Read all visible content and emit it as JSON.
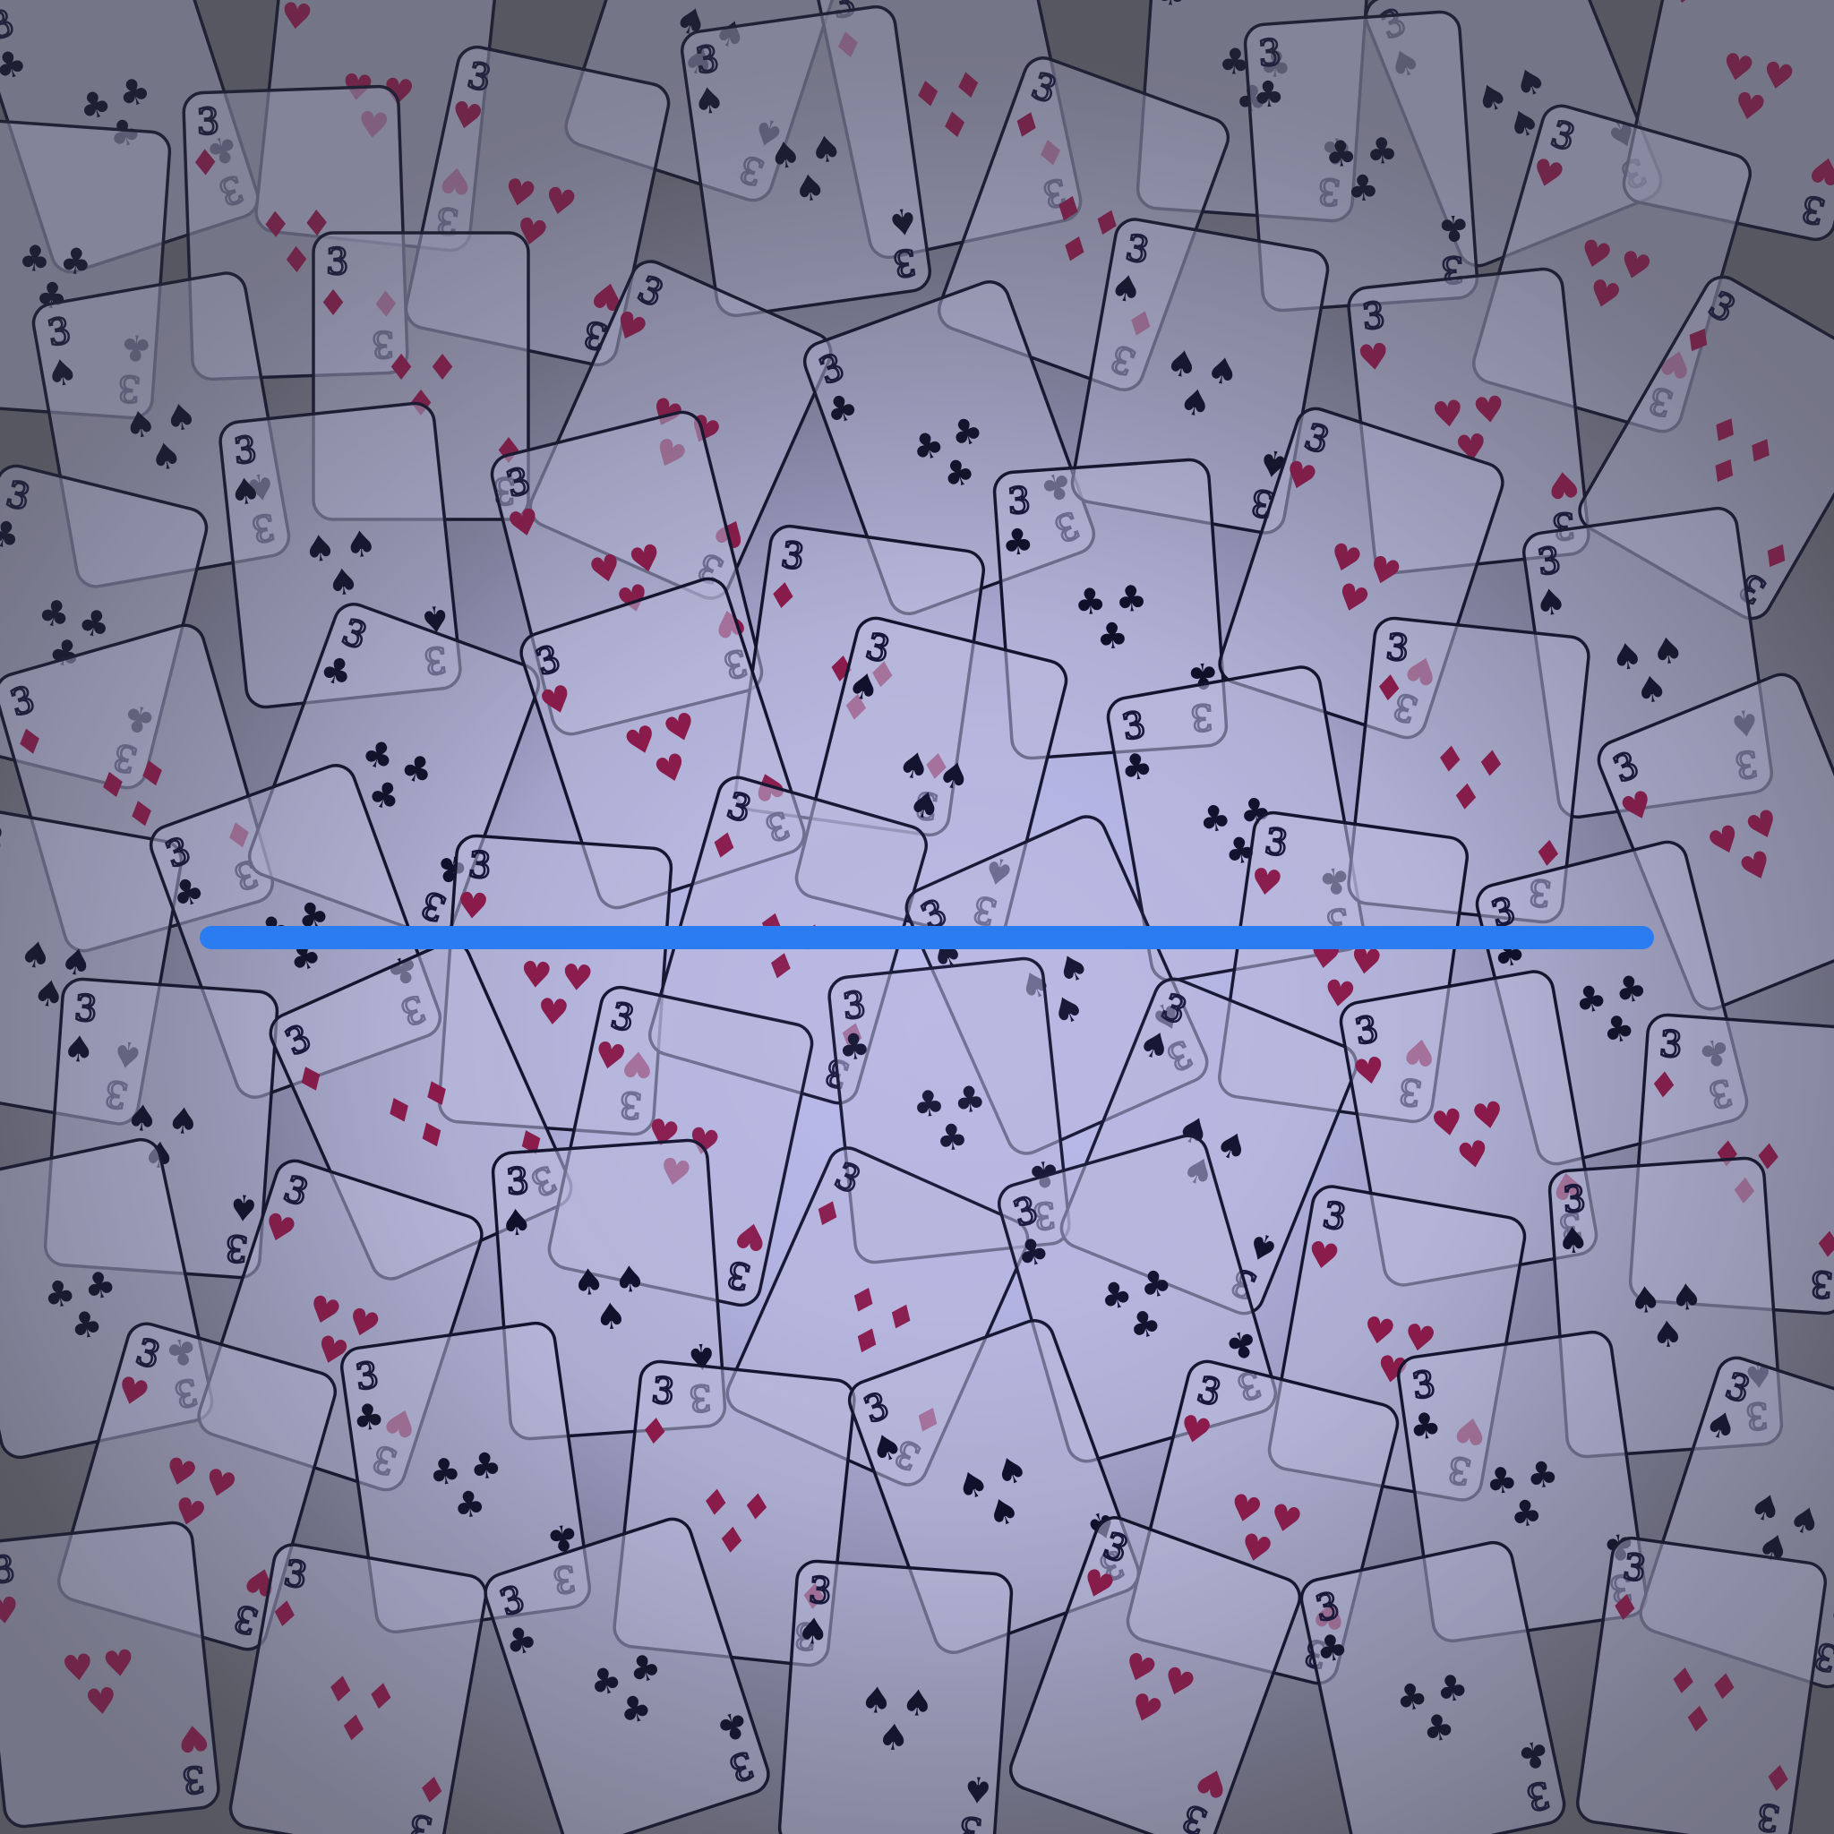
{
  "scene": {
    "card_rank": "3",
    "suits": {
      "hearts": "♥",
      "diamonds": "♦",
      "spades": "♠",
      "clubs": "♣"
    },
    "colors": {
      "red_suit": "#8a1a4a",
      "black_suit": "#0f0f2a",
      "card_outline": "#13132d",
      "line": "#2a7cf0",
      "line_glow": "#1f5fff"
    }
  },
  "cards": [
    {
      "suit": "clubs"
    },
    {
      "suit": "hearts"
    },
    {
      "suit": "spades"
    },
    {
      "suit": "diamonds"
    },
    {
      "suit": "clubs"
    },
    {
      "suit": "spades"
    },
    {
      "suit": "hearts"
    },
    {
      "suit": "clubs"
    },
    {
      "suit": "diamonds"
    },
    {
      "suit": "hearts"
    },
    {
      "suit": "spades"
    },
    {
      "suit": "diamonds"
    },
    {
      "suit": "clubs"
    },
    {
      "suit": "hearts"
    },
    {
      "suit": "spades"
    },
    {
      "suit": "diamonds"
    },
    {
      "suit": "hearts"
    },
    {
      "suit": "clubs"
    },
    {
      "suit": "spades"
    },
    {
      "suit": "hearts"
    },
    {
      "suit": "diamonds"
    },
    {
      "suit": "clubs"
    },
    {
      "suit": "spades"
    },
    {
      "suit": "hearts"
    },
    {
      "suit": "diamonds"
    },
    {
      "suit": "clubs"
    },
    {
      "suit": "hearts"
    },
    {
      "suit": "spades"
    },
    {
      "suit": "diamonds"
    },
    {
      "suit": "clubs"
    },
    {
      "suit": "hearts"
    },
    {
      "suit": "spades"
    },
    {
      "suit": "clubs"
    },
    {
      "suit": "diamonds"
    },
    {
      "suit": "hearts"
    },
    {
      "suit": "spades"
    },
    {
      "suit": "clubs"
    },
    {
      "suit": "hearts"
    },
    {
      "suit": "diamonds"
    },
    {
      "suit": "spades"
    },
    {
      "suit": "hearts"
    },
    {
      "suit": "clubs"
    },
    {
      "suit": "spades"
    },
    {
      "suit": "diamonds"
    },
    {
      "suit": "hearts"
    },
    {
      "suit": "clubs"
    },
    {
      "suit": "spades"
    },
    {
      "suit": "hearts"
    },
    {
      "suit": "diamonds"
    },
    {
      "suit": "clubs"
    },
    {
      "suit": "hearts"
    },
    {
      "suit": "spades"
    },
    {
      "suit": "diamonds"
    },
    {
      "suit": "clubs"
    },
    {
      "suit": "hearts"
    },
    {
      "suit": "spades"
    },
    {
      "suit": "hearts"
    },
    {
      "suit": "clubs"
    },
    {
      "suit": "diamonds"
    },
    {
      "suit": "spades"
    },
    {
      "suit": "hearts"
    },
    {
      "suit": "clubs"
    },
    {
      "suit": "spades"
    },
    {
      "suit": "hearts"
    },
    {
      "suit": "diamonds"
    },
    {
      "suit": "clubs"
    },
    {
      "suit": "spades"
    },
    {
      "suit": "hearts"
    },
    {
      "suit": "clubs"
    },
    {
      "suit": "diamonds"
    }
  ]
}
